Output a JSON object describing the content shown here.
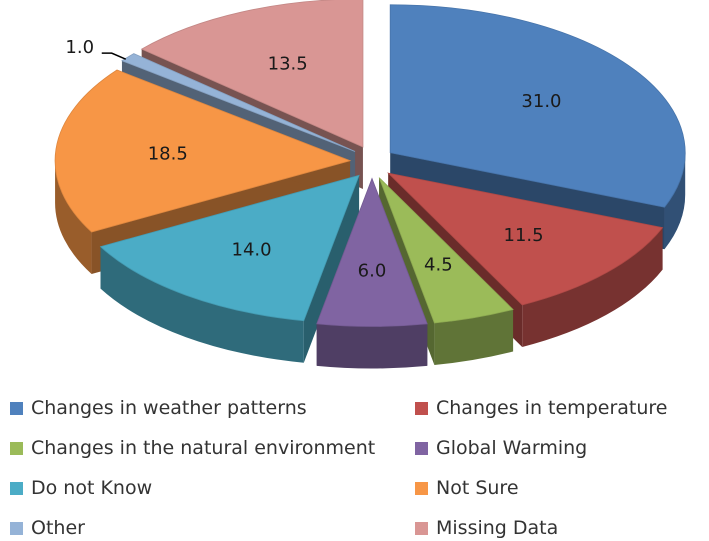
{
  "chart_data": {
    "type": "pie",
    "title": "",
    "labels": [
      "Changes in weather patterns",
      "Changes in temperature",
      "Changes in the natural environment",
      "Global Warming",
      "Do not Know",
      "Not Sure",
      "Other",
      "Missing Data"
    ],
    "values": [
      31.0,
      11.5,
      4.5,
      6.0,
      14.0,
      18.5,
      1.0,
      13.5
    ],
    "value_labels": [
      "31.0",
      "11.5",
      "4.5",
      "6.0",
      "14.0",
      "18.5",
      "1.0",
      "13.5"
    ],
    "colors": [
      "#4F81BD",
      "#C0504D",
      "#9BBB59",
      "#8064A2",
      "#4BACC6",
      "#F79646",
      "#95B3D7",
      "#D99694"
    ],
    "exploded": true,
    "three_d": true,
    "legend_position": "bottom"
  }
}
